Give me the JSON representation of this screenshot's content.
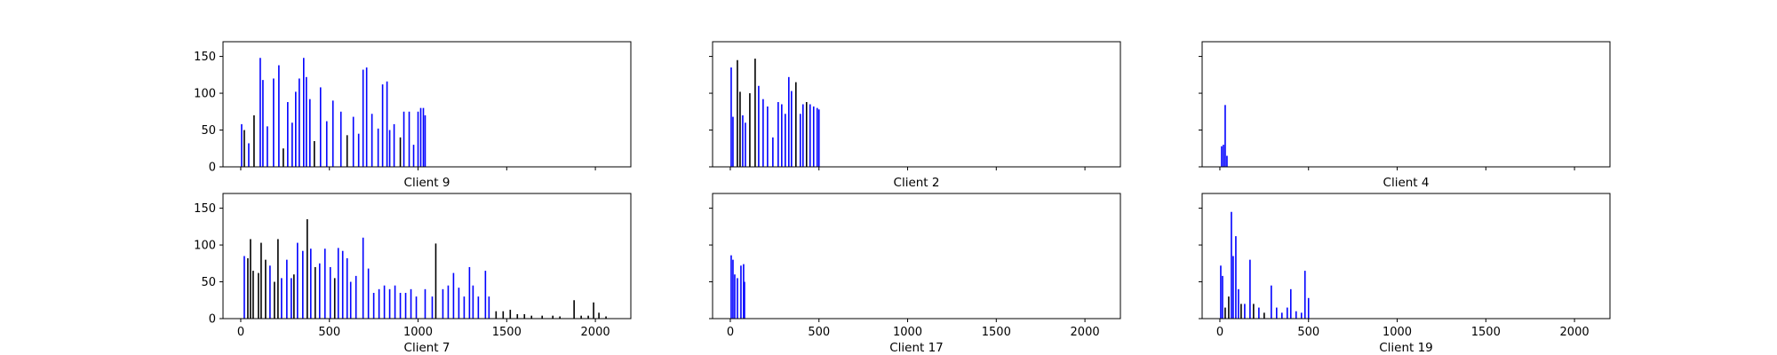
{
  "chart_data": {
    "type": "bar",
    "shared_axes": {
      "xlim": [
        -100,
        2200
      ],
      "ylim": [
        0,
        170
      ]
    },
    "x_ticks": [
      0,
      500,
      1000,
      1500,
      2000
    ],
    "x_tick_labels": [
      "0",
      "500",
      "1000",
      "1500",
      "2000"
    ],
    "y_ticks": [
      0,
      50,
      100,
      150
    ],
    "y_tick_labels": [
      "0",
      "50",
      "100",
      "150"
    ],
    "colors": {
      "primary": "#0000ff",
      "secondary": "#000000"
    },
    "panels": [
      {
        "label": "Client 9",
        "bars": [
          [
            5,
            58,
            "b"
          ],
          [
            20,
            50,
            "k"
          ],
          [
            45,
            32,
            "b"
          ],
          [
            75,
            70,
            "k"
          ],
          [
            110,
            148,
            "b"
          ],
          [
            125,
            118,
            "b"
          ],
          [
            150,
            55,
            "b"
          ],
          [
            185,
            120,
            "b"
          ],
          [
            215,
            138,
            "b"
          ],
          [
            240,
            25,
            "k"
          ],
          [
            265,
            88,
            "b"
          ],
          [
            290,
            60,
            "b"
          ],
          [
            310,
            102,
            "b"
          ],
          [
            330,
            120,
            "b"
          ],
          [
            355,
            148,
            "b"
          ],
          [
            370,
            122,
            "b"
          ],
          [
            390,
            92,
            "b"
          ],
          [
            415,
            35,
            "k"
          ],
          [
            450,
            108,
            "b"
          ],
          [
            485,
            62,
            "b"
          ],
          [
            520,
            90,
            "b"
          ],
          [
            565,
            75,
            "b"
          ],
          [
            600,
            43,
            "k"
          ],
          [
            635,
            68,
            "b"
          ],
          [
            665,
            45,
            "b"
          ],
          [
            690,
            132,
            "b"
          ],
          [
            710,
            135,
            "b"
          ],
          [
            740,
            72,
            "b"
          ],
          [
            775,
            52,
            "b"
          ],
          [
            800,
            112,
            "b"
          ],
          [
            825,
            116,
            "b"
          ],
          [
            840,
            50,
            "b"
          ],
          [
            865,
            58,
            "b"
          ],
          [
            900,
            40,
            "k"
          ],
          [
            920,
            75,
            "b"
          ],
          [
            950,
            75,
            "b"
          ],
          [
            975,
            30,
            "b"
          ],
          [
            1000,
            75,
            "b"
          ],
          [
            1015,
            80,
            "b"
          ],
          [
            1030,
            80,
            "b"
          ],
          [
            1040,
            70,
            "b"
          ]
        ]
      },
      {
        "label": "Client 2",
        "bars": [
          [
            5,
            135,
            "b"
          ],
          [
            15,
            68,
            "b"
          ],
          [
            40,
            145,
            "k"
          ],
          [
            55,
            102,
            "k"
          ],
          [
            70,
            70,
            "b"
          ],
          [
            85,
            60,
            "b"
          ],
          [
            110,
            100,
            "k"
          ],
          [
            140,
            147,
            "k"
          ],
          [
            160,
            110,
            "b"
          ],
          [
            185,
            92,
            "b"
          ],
          [
            210,
            82,
            "b"
          ],
          [
            240,
            40,
            "b"
          ],
          [
            270,
            88,
            "b"
          ],
          [
            290,
            85,
            "b"
          ],
          [
            310,
            72,
            "b"
          ],
          [
            330,
            122,
            "b"
          ],
          [
            345,
            103,
            "b"
          ],
          [
            370,
            115,
            "k"
          ],
          [
            395,
            72,
            "b"
          ],
          [
            410,
            85,
            "b"
          ],
          [
            430,
            88,
            "k"
          ],
          [
            450,
            85,
            "b"
          ],
          [
            470,
            82,
            "b"
          ],
          [
            490,
            80,
            "b"
          ],
          [
            500,
            78,
            "b"
          ]
        ]
      },
      {
        "label": "Client 4",
        "bars": [
          [
            10,
            28,
            "b"
          ],
          [
            20,
            30,
            "b"
          ],
          [
            30,
            84,
            "b"
          ],
          [
            40,
            15,
            "b"
          ]
        ]
      },
      {
        "label": "Client 7",
        "bars": [
          [
            20,
            85,
            "b"
          ],
          [
            40,
            82,
            "k"
          ],
          [
            55,
            108,
            "k"
          ],
          [
            70,
            65,
            "k"
          ],
          [
            100,
            62,
            "k"
          ],
          [
            115,
            103,
            "k"
          ],
          [
            140,
            80,
            "k"
          ],
          [
            165,
            72,
            "b"
          ],
          [
            190,
            50,
            "k"
          ],
          [
            210,
            108,
            "k"
          ],
          [
            230,
            55,
            "b"
          ],
          [
            260,
            80,
            "b"
          ],
          [
            285,
            55,
            "b"
          ],
          [
            300,
            60,
            "k"
          ],
          [
            320,
            103,
            "b"
          ],
          [
            350,
            92,
            "b"
          ],
          [
            375,
            135,
            "k"
          ],
          [
            395,
            95,
            "b"
          ],
          [
            420,
            70,
            "k"
          ],
          [
            445,
            75,
            "b"
          ],
          [
            475,
            95,
            "b"
          ],
          [
            505,
            70,
            "b"
          ],
          [
            530,
            55,
            "k"
          ],
          [
            550,
            96,
            "b"
          ],
          [
            575,
            92,
            "b"
          ],
          [
            600,
            82,
            "b"
          ],
          [
            620,
            50,
            "b"
          ],
          [
            650,
            58,
            "b"
          ],
          [
            690,
            110,
            "b"
          ],
          [
            720,
            68,
            "b"
          ],
          [
            750,
            35,
            "b"
          ],
          [
            780,
            40,
            "b"
          ],
          [
            810,
            45,
            "b"
          ],
          [
            840,
            40,
            "b"
          ],
          [
            870,
            45,
            "b"
          ],
          [
            900,
            35,
            "b"
          ],
          [
            930,
            35,
            "b"
          ],
          [
            960,
            40,
            "b"
          ],
          [
            990,
            30,
            "b"
          ],
          [
            1040,
            40,
            "b"
          ],
          [
            1080,
            30,
            "b"
          ],
          [
            1100,
            102,
            "k"
          ],
          [
            1140,
            40,
            "b"
          ],
          [
            1170,
            45,
            "b"
          ],
          [
            1200,
            62,
            "b"
          ],
          [
            1230,
            42,
            "b"
          ],
          [
            1260,
            30,
            "b"
          ],
          [
            1290,
            70,
            "b"
          ],
          [
            1310,
            45,
            "b"
          ],
          [
            1340,
            30,
            "b"
          ],
          [
            1380,
            65,
            "b"
          ],
          [
            1400,
            30,
            "b"
          ],
          [
            1440,
            10,
            "k"
          ],
          [
            1480,
            10,
            "k"
          ],
          [
            1520,
            12,
            "k"
          ],
          [
            1560,
            6,
            "k"
          ],
          [
            1600,
            6,
            "k"
          ],
          [
            1640,
            4,
            "k"
          ],
          [
            1700,
            4,
            "k"
          ],
          [
            1760,
            4,
            "k"
          ],
          [
            1800,
            3,
            "k"
          ],
          [
            1880,
            25,
            "k"
          ],
          [
            1920,
            4,
            "k"
          ],
          [
            1960,
            4,
            "k"
          ],
          [
            1990,
            22,
            "k"
          ],
          [
            2020,
            8,
            "k"
          ],
          [
            2060,
            3,
            "k"
          ]
        ]
      },
      {
        "label": "Client 17",
        "bars": [
          [
            5,
            86,
            "b"
          ],
          [
            15,
            80,
            "b"
          ],
          [
            25,
            60,
            "b"
          ],
          [
            40,
            55,
            "b"
          ],
          [
            60,
            72,
            "b"
          ],
          [
            75,
            74,
            "b"
          ],
          [
            80,
            50,
            "b"
          ]
        ]
      },
      {
        "label": "Client 19",
        "bars": [
          [
            5,
            72,
            "b"
          ],
          [
            15,
            58,
            "b"
          ],
          [
            30,
            15,
            "k"
          ],
          [
            50,
            30,
            "k"
          ],
          [
            65,
            145,
            "b"
          ],
          [
            75,
            85,
            "b"
          ],
          [
            90,
            112,
            "b"
          ],
          [
            105,
            40,
            "b"
          ],
          [
            120,
            20,
            "k"
          ],
          [
            140,
            20,
            "b"
          ],
          [
            170,
            80,
            "b"
          ],
          [
            190,
            20,
            "k"
          ],
          [
            220,
            15,
            "b"
          ],
          [
            250,
            8,
            "k"
          ],
          [
            290,
            45,
            "b"
          ],
          [
            320,
            15,
            "b"
          ],
          [
            350,
            8,
            "b"
          ],
          [
            380,
            15,
            "b"
          ],
          [
            400,
            40,
            "b"
          ],
          [
            430,
            10,
            "b"
          ],
          [
            460,
            8,
            "b"
          ],
          [
            480,
            65,
            "b"
          ],
          [
            500,
            28,
            "b"
          ]
        ]
      }
    ]
  }
}
